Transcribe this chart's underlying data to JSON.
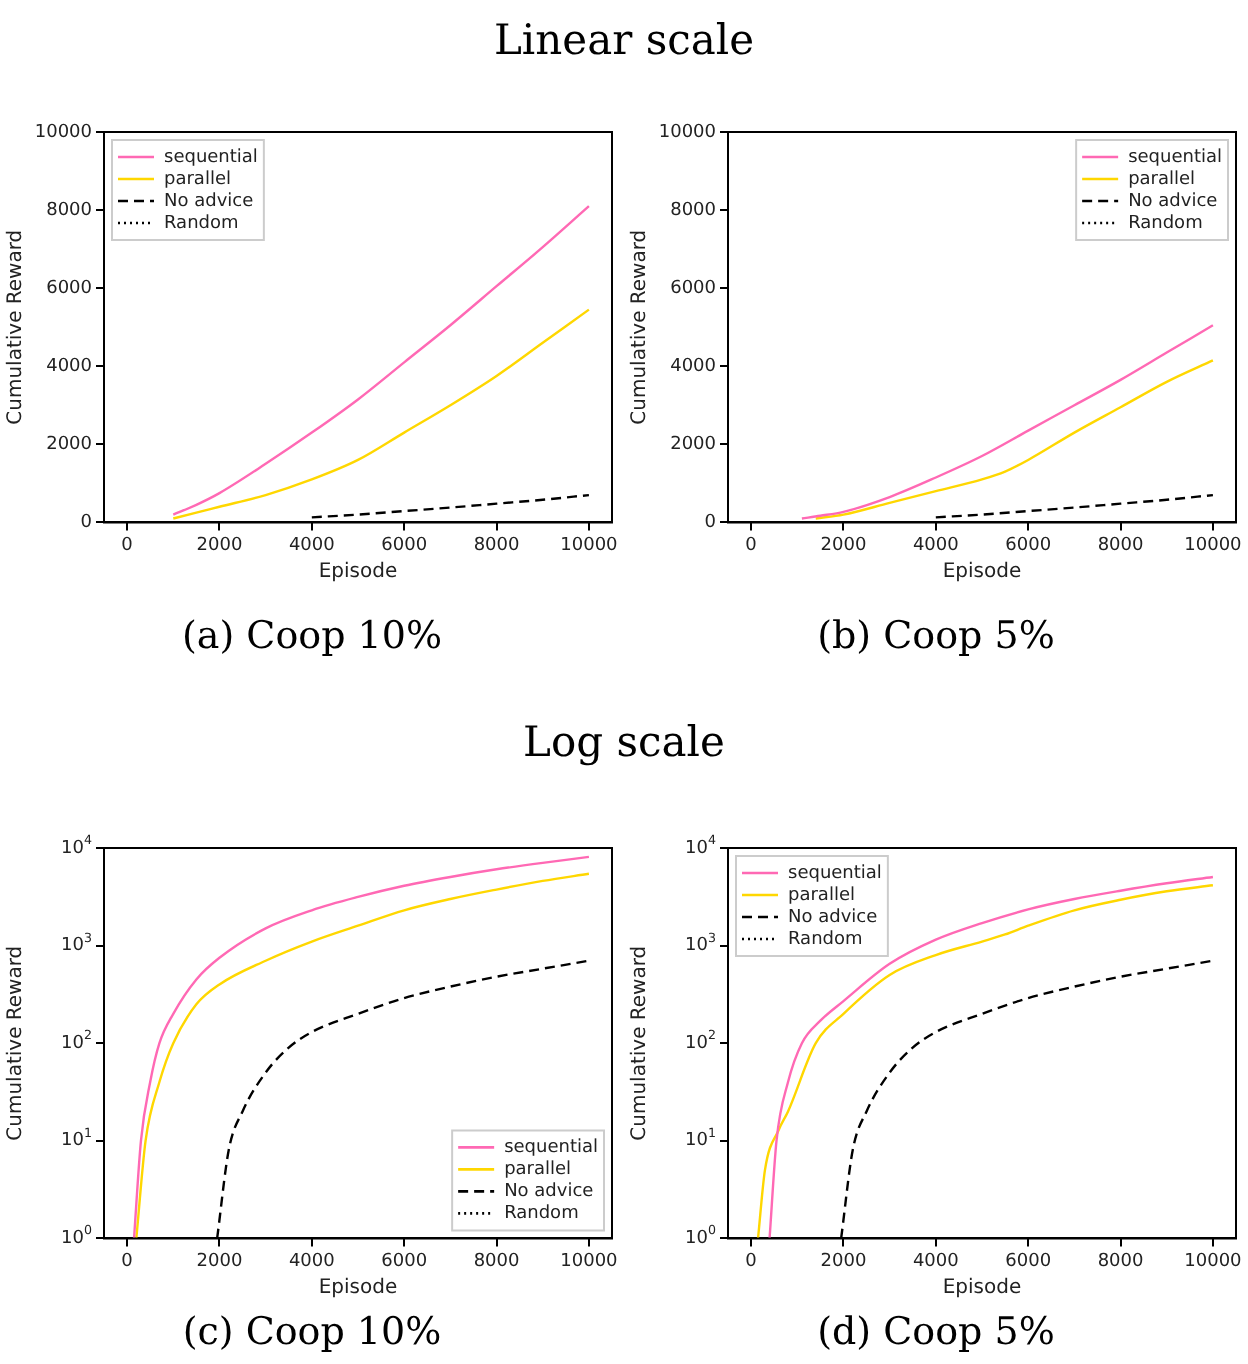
{
  "chart_data": [
    {
      "type": "line",
      "title": "Linear scale",
      "xlabel": "Episode",
      "ylabel": "Cumulative Reward",
      "annotations": [
        "(a) Coop 10%"
      ],
      "marker": "none",
      "legend": "top left",
      "xlim": [
        -500,
        10500
      ],
      "xticks": [
        0,
        2000,
        4000,
        6000,
        8000,
        10000
      ],
      "ylim": [
        0,
        10000
      ],
      "yticks": [
        0,
        2000,
        4000,
        6000,
        8000,
        10000
      ],
      "series": [
        {
          "name": "sequential",
          "color": "#ff69b4",
          "line_style": "solid",
          "x": [
            1000,
            1500,
            2000,
            3000,
            4000,
            5000,
            6000,
            7000,
            8000,
            9000,
            10000
          ],
          "values": [
            200,
            450,
            750,
            1500,
            2300,
            3150,
            4100,
            5050,
            6050,
            7050,
            8100
          ]
        },
        {
          "name": "parallel",
          "color": "#ffd700",
          "line_style": "solid",
          "x": [
            1000,
            1500,
            2000,
            3000,
            4000,
            5000,
            6000,
            7000,
            8000,
            9000,
            10000
          ],
          "values": [
            100,
            250,
            400,
            700,
            1100,
            1600,
            2300,
            3000,
            3750,
            4600,
            5450
          ]
        },
        {
          "name": "No advice",
          "color": "#000000",
          "line_style": "dashed",
          "x": [
            4000,
            5000,
            6000,
            7000,
            8000,
            9000,
            10000
          ],
          "values": [
            130,
            200,
            290,
            380,
            480,
            580,
            700
          ]
        },
        {
          "name": "Random",
          "color": "#000000",
          "line_style": "dotted"
        }
      ]
    },
    {
      "type": "line",
      "xlabel": "Episode",
      "ylabel": "Cumulative Reward",
      "annotations": [
        "(b) Coop 5%"
      ],
      "marker": "none",
      "legend": "top right",
      "xlim": [
        -500,
        10500
      ],
      "xticks": [
        0,
        2000,
        4000,
        6000,
        8000,
        10000
      ],
      "ylim": [
        0,
        10000
      ],
      "yticks": [
        0,
        2000,
        4000,
        6000,
        8000,
        10000
      ],
      "series": [
        {
          "name": "sequential",
          "color": "#ff69b4",
          "line_style": "solid",
          "x": [
            1100,
            1500,
            2000,
            3000,
            4000,
            5000,
            6000,
            7000,
            8000,
            9000,
            10000
          ],
          "values": [
            100,
            170,
            270,
            650,
            1150,
            1700,
            2350,
            3000,
            3650,
            4350,
            5050
          ]
        },
        {
          "name": "parallel",
          "color": "#ffd700",
          "line_style": "solid",
          "x": [
            1400,
            2000,
            3000,
            4000,
            5000,
            5500,
            6000,
            7000,
            8000,
            9000,
            10000
          ],
          "values": [
            100,
            200,
            500,
            800,
            1100,
            1300,
            1600,
            2300,
            2950,
            3600,
            4150
          ]
        },
        {
          "name": "No advice",
          "color": "#000000",
          "line_style": "dashed",
          "x": [
            4000,
            5000,
            6000,
            7000,
            8000,
            9000,
            10000
          ],
          "values": [
            130,
            200,
            290,
            380,
            480,
            580,
            700
          ]
        },
        {
          "name": "Random",
          "color": "#000000",
          "line_style": "dotted"
        }
      ]
    },
    {
      "type": "line",
      "title": "Log scale",
      "xlabel": "Episode",
      "ylabel": "Cumulative Reward",
      "annotations": [
        "(c) Coop 10%"
      ],
      "marker": "none",
      "legend": "bottom right",
      "log": "y",
      "xlim": [
        -500,
        10500
      ],
      "xticks": [
        0,
        2000,
        4000,
        6000,
        8000,
        10000
      ],
      "ylim": [
        1,
        10000
      ],
      "yticks": [
        {
          "value": 1,
          "label": "10$^{0}$"
        },
        {
          "value": 10,
          "label": "10$^{1}$"
        },
        {
          "value": 100,
          "label": "10$^{2}$"
        },
        {
          "value": 1000,
          "label": "10$^{3}$"
        },
        {
          "value": 10000,
          "label": "10$^{4}$"
        }
      ],
      "series": [
        {
          "name": "sequential",
          "color": "#ff69b4",
          "line_style": "solid",
          "x": [
            150,
            300,
            500,
            700,
            1000,
            1500,
            2000,
            3000,
            4000,
            5000,
            6000,
            7000,
            8000,
            9000,
            10000
          ],
          "values": [
            1,
            10,
            40,
            100,
            200,
            450,
            750,
            1500,
            2300,
            3150,
            4100,
            5050,
            6050,
            7050,
            8100
          ]
        },
        {
          "name": "parallel",
          "color": "#ffd700",
          "line_style": "solid",
          "x": [
            200,
            400,
            700,
            1000,
            1500,
            2000,
            3000,
            4000,
            5000,
            6000,
            7000,
            8000,
            9000,
            10000
          ],
          "values": [
            1,
            10,
            40,
            100,
            250,
            400,
            700,
            1100,
            1600,
            2300,
            3000,
            3750,
            4600,
            5450
          ]
        },
        {
          "name": "No advice",
          "color": "#000000",
          "line_style": "dashed",
          "x": [
            1950,
            2200,
            2500,
            3000,
            3500,
            4000,
            5000,
            6000,
            7000,
            8000,
            9000,
            10000
          ],
          "values": [
            1,
            8,
            20,
            50,
            90,
            130,
            200,
            290,
            380,
            480,
            580,
            700
          ]
        },
        {
          "name": "Random",
          "color": "#000000",
          "line_style": "dotted"
        }
      ]
    },
    {
      "type": "line",
      "xlabel": "Episode",
      "ylabel": "Cumulative Reward",
      "annotations": [
        "(d) Coop 5%"
      ],
      "marker": "none",
      "legend": "top left",
      "log": "y",
      "xlim": [
        -500,
        10500
      ],
      "xticks": [
        0,
        2000,
        4000,
        6000,
        8000,
        10000
      ],
      "ylim": [
        1,
        10000
      ],
      "yticks": [
        {
          "value": 1,
          "label": "10$^{0}$"
        },
        {
          "value": 10,
          "label": "10$^{1}$"
        },
        {
          "value": 100,
          "label": "10$^{2}$"
        },
        {
          "value": 1000,
          "label": "10$^{3}$"
        },
        {
          "value": 10000,
          "label": "10$^{4}$"
        }
      ],
      "series": [
        {
          "name": "sequential",
          "color": "#ff69b4",
          "line_style": "solid",
          "x": [
            400,
            550,
            800,
            1100,
            1500,
            2000,
            3000,
            4000,
            5000,
            6000,
            7000,
            8000,
            9000,
            10000
          ],
          "values": [
            1,
            10,
            40,
            100,
            170,
            270,
            650,
            1150,
            1700,
            2350,
            3000,
            3650,
            4350,
            5050
          ]
        },
        {
          "name": "parallel",
          "color": "#ffd700",
          "line_style": "solid",
          "x": [
            150,
            300,
            600,
            800,
            1400,
            2000,
            3000,
            4000,
            5000,
            5500,
            6000,
            7000,
            8000,
            9000,
            10000
          ],
          "values": [
            1,
            5,
            13,
            20,
            100,
            200,
            500,
            800,
            1100,
            1300,
            1600,
            2300,
            2950,
            3600,
            4150
          ]
        },
        {
          "name": "No advice",
          "color": "#000000",
          "line_style": "dashed",
          "x": [
            1950,
            2200,
            2500,
            3000,
            3500,
            4000,
            5000,
            6000,
            7000,
            8000,
            9000,
            10000
          ],
          "values": [
            1,
            8,
            20,
            50,
            90,
            130,
            200,
            290,
            380,
            480,
            580,
            700
          ]
        },
        {
          "name": "Random",
          "color": "#000000",
          "line_style": "dotted"
        }
      ]
    }
  ]
}
